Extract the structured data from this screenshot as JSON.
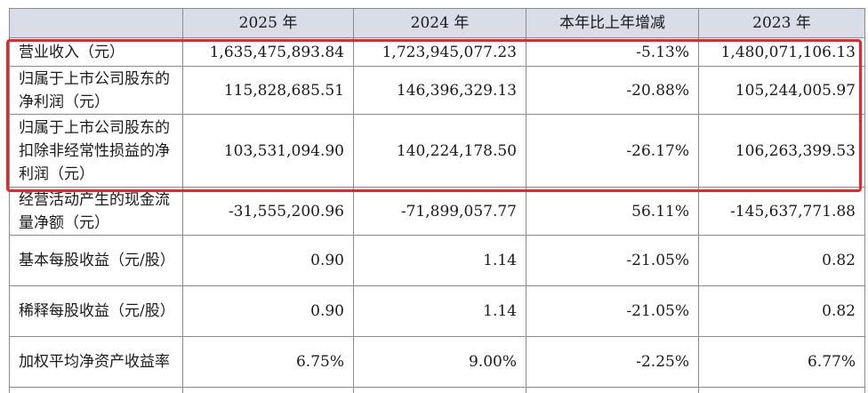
{
  "table": {
    "headers": [
      "",
      "2025 年",
      "2024 年",
      "本年比上年增减",
      "2023 年"
    ],
    "rows": [
      {
        "label": "营业收入（元）",
        "values": [
          "1,635,475,893.84",
          "1,723,945,077.23",
          "-5.13%",
          "1,480,071,106.13"
        ]
      },
      {
        "label": "归属于上市公司股东的净利润（元）",
        "values": [
          "115,828,685.51",
          "146,396,329.13",
          "-20.88%",
          "105,244,005.97"
        ]
      },
      {
        "label": "归属于上市公司股东的扣除非经常性损益的净利润（元）",
        "values": [
          "103,531,094.90",
          "140,224,178.50",
          "-26.17%",
          "106,263,399.53"
        ]
      },
      {
        "label": "经营活动产生的现金流量净额（元）",
        "values": [
          "-31,555,200.96",
          "-71,899,057.77",
          "56.11%",
          "-145,637,771.88"
        ]
      },
      {
        "label": "基本每股收益（元/股）",
        "values": [
          "0.90",
          "1.14",
          "-21.05%",
          "0.82"
        ]
      },
      {
        "label": "稀释每股收益（元/股）",
        "values": [
          "0.90",
          "1.14",
          "-21.05%",
          "0.82"
        ]
      },
      {
        "label": "加权平均净资产收益率",
        "values": [
          "6.75%",
          "9.00%",
          "-2.25%",
          "6.77%"
        ]
      }
    ]
  },
  "highlight": {
    "color": "#e8262b",
    "rows_covered": [
      0,
      1,
      2
    ]
  }
}
